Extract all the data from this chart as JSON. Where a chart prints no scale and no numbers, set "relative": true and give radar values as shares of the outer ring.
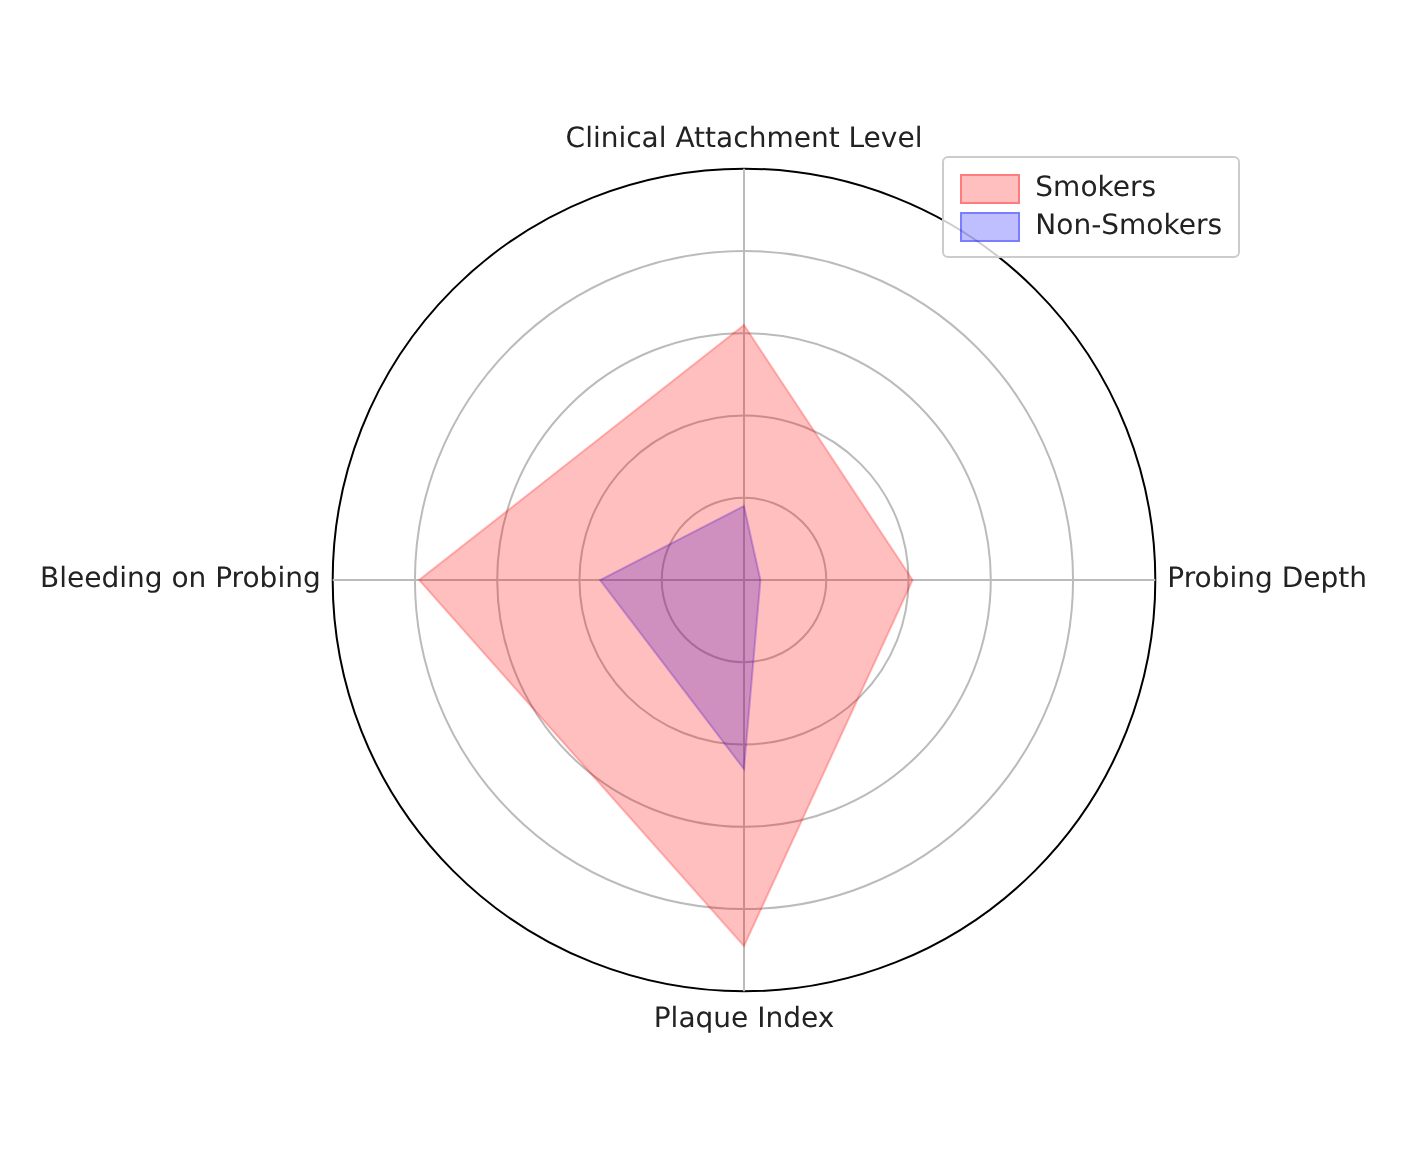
{
  "chart_data": {
    "type": "radar",
    "relative": true,
    "categories": [
      "Clinical Attachment Level",
      "Probing Depth",
      "Plaque Index",
      "Bleeding on Probing"
    ],
    "series": [
      {
        "name": "Smokers",
        "color": "#ff0000",
        "values": [
          0.62,
          0.41,
          0.89,
          0.79
        ]
      },
      {
        "name": "Non-Smokers",
        "color": "#0000ff",
        "values": [
          0.18,
          0.04,
          0.46,
          0.35
        ]
      }
    ],
    "grid": true,
    "legend": "top right"
  }
}
